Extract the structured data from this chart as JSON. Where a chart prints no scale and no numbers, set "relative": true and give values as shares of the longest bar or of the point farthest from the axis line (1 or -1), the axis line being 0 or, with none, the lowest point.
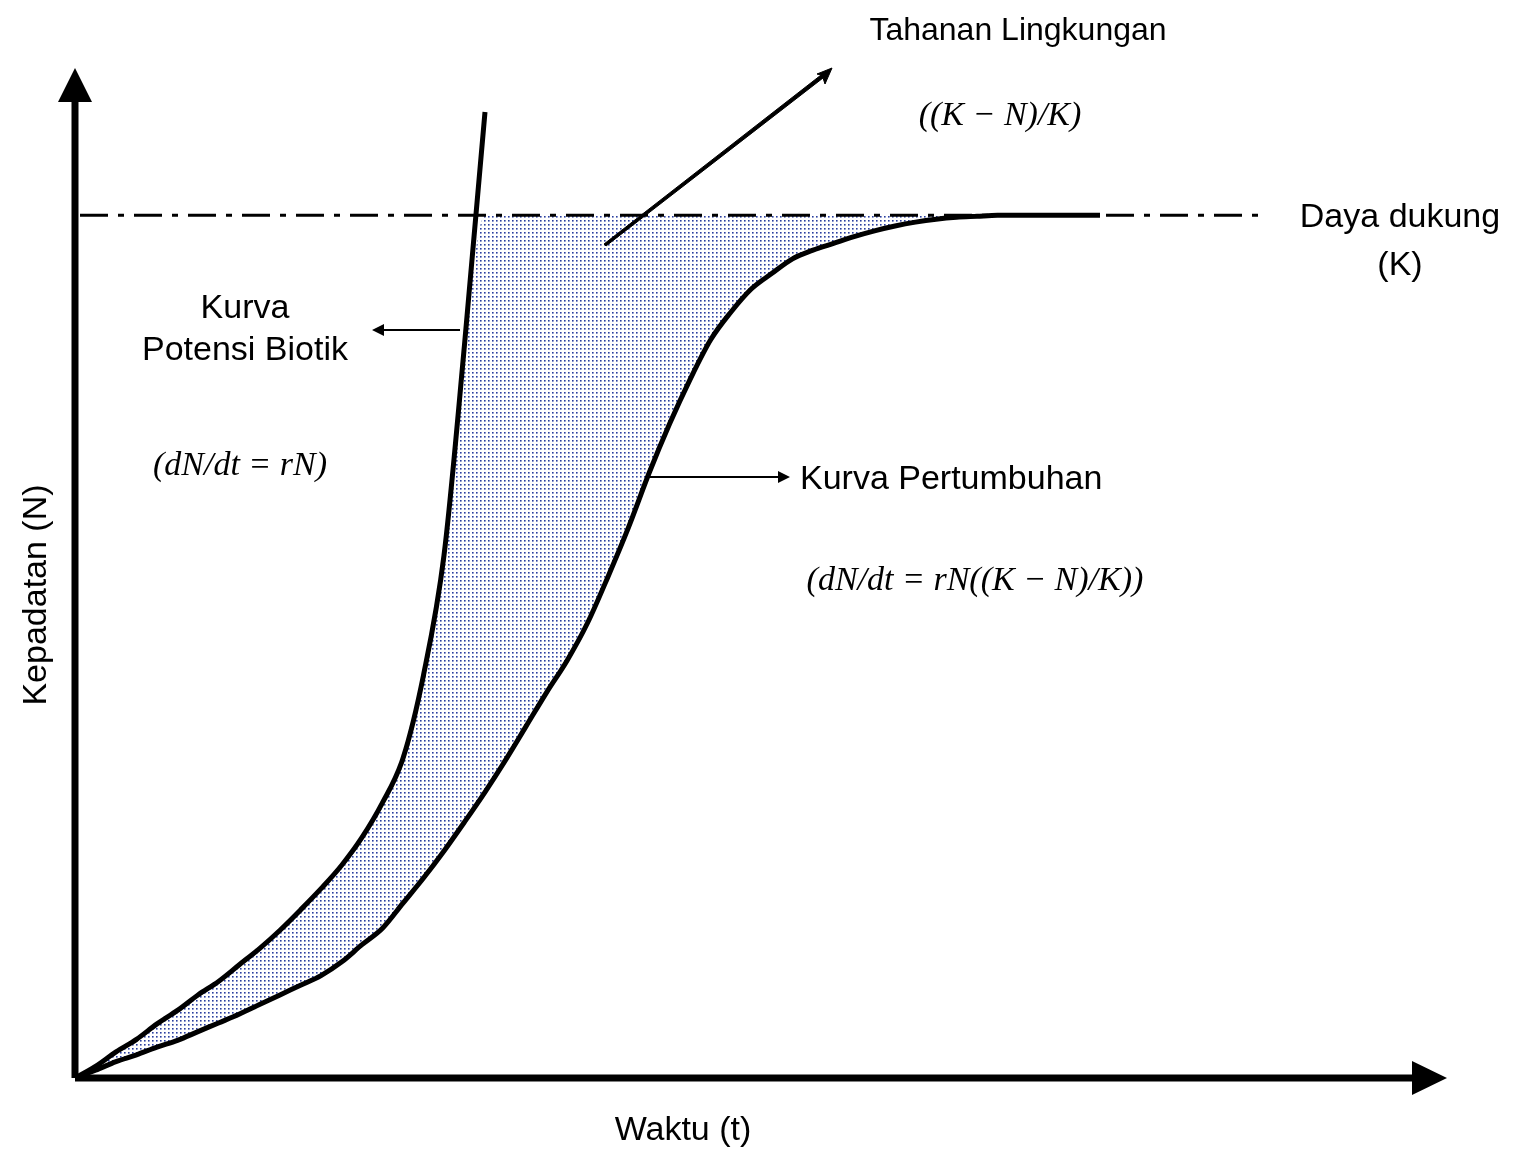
{
  "chart_data": {
    "type": "line",
    "relative": true,
    "xlabel": "Waktu (t)",
    "ylabel": "Kepadatan (N)",
    "categories": [
      null,
      null,
      null,
      null,
      null,
      null,
      null,
      null,
      null,
      null,
      null,
      null,
      null,
      null,
      null,
      null,
      null,
      null,
      null,
      null,
      null,
      null,
      null,
      null,
      null,
      null,
      null,
      null,
      null,
      null,
      null,
      null,
      null,
      null,
      null,
      null,
      null,
      null,
      null,
      null,
      null,
      null,
      null,
      null,
      null,
      null,
      null,
      null,
      null,
      null,
      null
    ],
    "series": [
      {
        "color": "#000000",
        "values": [
          0,
          0.012,
          0.027,
          0.04,
          0.056,
          0.07,
          0.086,
          0.1,
          0.117,
          0.134,
          0.153,
          0.174,
          0.196,
          0.22,
          0.249,
          0.285,
          0.331,
          0.417,
          0.541,
          0.759,
          1.0,
          null,
          null,
          null,
          null,
          null,
          null,
          null,
          null,
          null,
          null,
          null,
          null,
          null,
          null,
          null,
          null,
          null,
          null,
          null,
          null,
          null,
          null,
          null,
          null,
          null,
          null,
          null,
          null,
          null,
          null
        ]
      },
      {
        "color": "#000000",
        "values": [
          0,
          0.008,
          0.017,
          0.024,
          0.032,
          0.039,
          0.048,
          0.057,
          0.066,
          0.076,
          0.086,
          0.096,
          0.106,
          0.12,
          0.138,
          0.155,
          0.181,
          0.207,
          0.235,
          0.265,
          0.296,
          0.329,
          0.364,
          0.399,
          0.432,
          0.471,
          0.519,
          0.57,
          0.626,
          0.677,
          0.723,
          0.764,
          0.793,
          0.817,
          0.833,
          0.848,
          0.857,
          0.864,
          0.871,
          0.877,
          0.882,
          0.886,
          0.889,
          0.891,
          0.892,
          0.893,
          0.893,
          0.893,
          0.893,
          0.893,
          0.893
        ],
        "lower": [
          0,
          0.008,
          0.017,
          0.024,
          0.032,
          0.039,
          0.048,
          0.057,
          0.066,
          0.076,
          0.086,
          0.096,
          0.106,
          0.12,
          0.138,
          0.155,
          0.181,
          0.207,
          0.235,
          0.265,
          0.296,
          0.329,
          0.364,
          0.399,
          0.432,
          0.471,
          0.519,
          0.57,
          0.626,
          0.677,
          0.723,
          0.764,
          0.793,
          0.817,
          0.833,
          0.848,
          0.857,
          0.864,
          0.871,
          0.877,
          0.882,
          0.886,
          0.889,
          0.891,
          0.892,
          0.893,
          0.893,
          0.893,
          0.893,
          0.893,
          0.893
        ],
        "upper": [
          0,
          0.012,
          0.027,
          0.04,
          0.056,
          0.07,
          0.086,
          0.1,
          0.117,
          0.134,
          0.153,
          0.174,
          0.196,
          0.22,
          0.249,
          0.285,
          0.331,
          0.417,
          0.541,
          0.759,
          0.893,
          0.893,
          0.893,
          0.893,
          0.893,
          0.893,
          0.893,
          0.893,
          0.893,
          0.893,
          0.893,
          0.893,
          0.893,
          0.893,
          0.893,
          0.893,
          0.893,
          0.893,
          0.893,
          0.893,
          0.893,
          0.893,
          0.893,
          0.893,
          0.893,
          0.893,
          0.893,
          0.893,
          0.893,
          0.893,
          0.893
        ]
      }
    ],
    "ref_lines": [
      {
        "axis": "y",
        "value": 0.893,
        "label": "Daya dukung (K)",
        "line_style": "dashed",
        "color": "#000000"
      }
    ],
    "annotations": [
      "Tahanan Lingkungan",
      "((K − N)/K)",
      "(dN/dt = rN)",
      "(dN/dt = rN((K − N)/K))",
      "Kurva Potensi Biotik",
      "Kurva Pertumbuhan"
    ]
  }
}
